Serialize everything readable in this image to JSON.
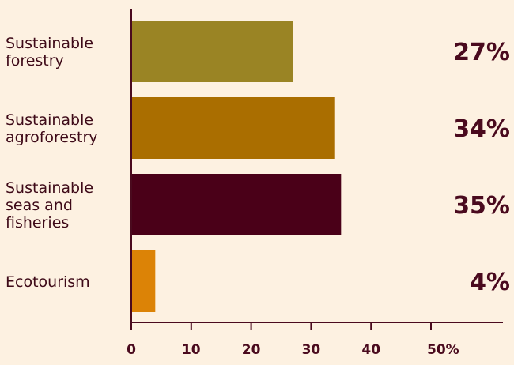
{
  "chart_data": {
    "type": "bar",
    "orientation": "horizontal",
    "categories": [
      [
        "Sustainable",
        "forestry"
      ],
      [
        "Sustainable",
        "agroforestry"
      ],
      [
        "Sustainable",
        "seas and",
        "fisheries"
      ],
      [
        "Ecotourism"
      ]
    ],
    "values": [
      27,
      34,
      35,
      4
    ],
    "value_labels": [
      "27%",
      "34%",
      "35%",
      "4%"
    ],
    "colors": [
      "#9A8424",
      "#AA6E00",
      "#4A0018",
      "#DC8306"
    ],
    "xlim": [
      0,
      50
    ],
    "xticks": [
      0,
      10,
      20,
      30,
      40,
      50
    ],
    "xtick_labels": [
      "0",
      "10",
      "20",
      "30",
      "40",
      "50%"
    ],
    "axis_color": "#4A0A1E",
    "grid": false,
    "legend": "none"
  }
}
